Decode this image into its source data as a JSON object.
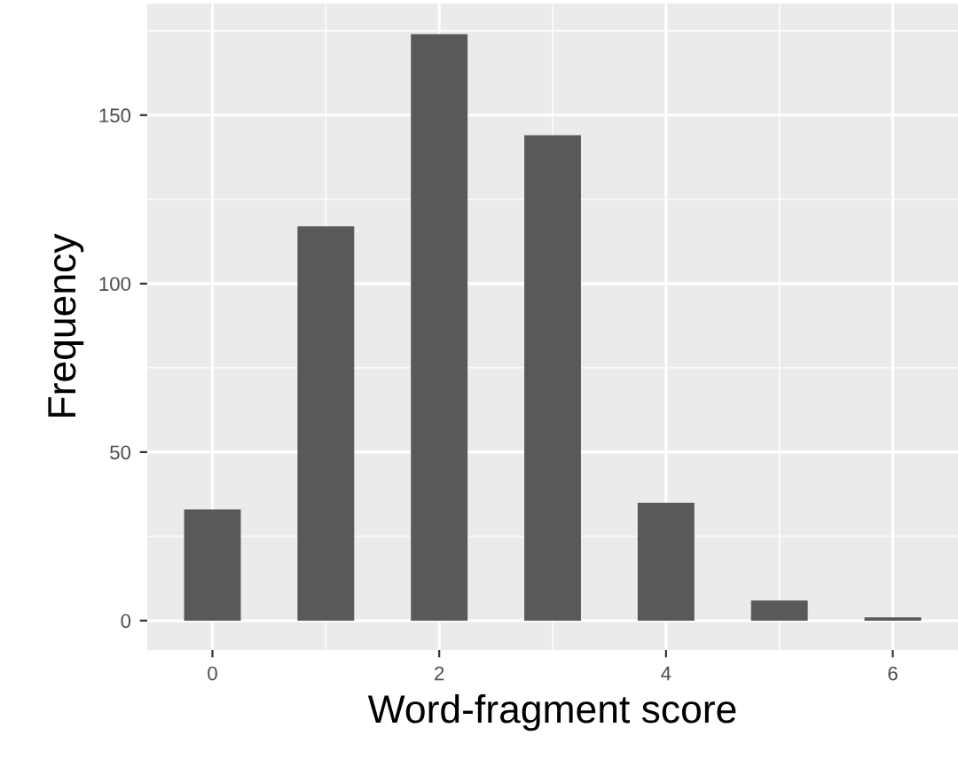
{
  "chart_data": {
    "type": "bar",
    "xlabel": "Word-fragment score",
    "ylabel": "Frequency",
    "x": [
      0,
      1,
      2,
      3,
      4,
      5,
      6
    ],
    "values": [
      33,
      117,
      174,
      144,
      35,
      6,
      1
    ],
    "color": "#595959",
    "xlim": [
      -0.575,
      6.575
    ],
    "ylim": [
      -8.7,
      183.1
    ],
    "xticks": [
      0,
      2,
      4,
      6
    ],
    "yticks": [
      0,
      50,
      100,
      150
    ],
    "grid": true
  }
}
